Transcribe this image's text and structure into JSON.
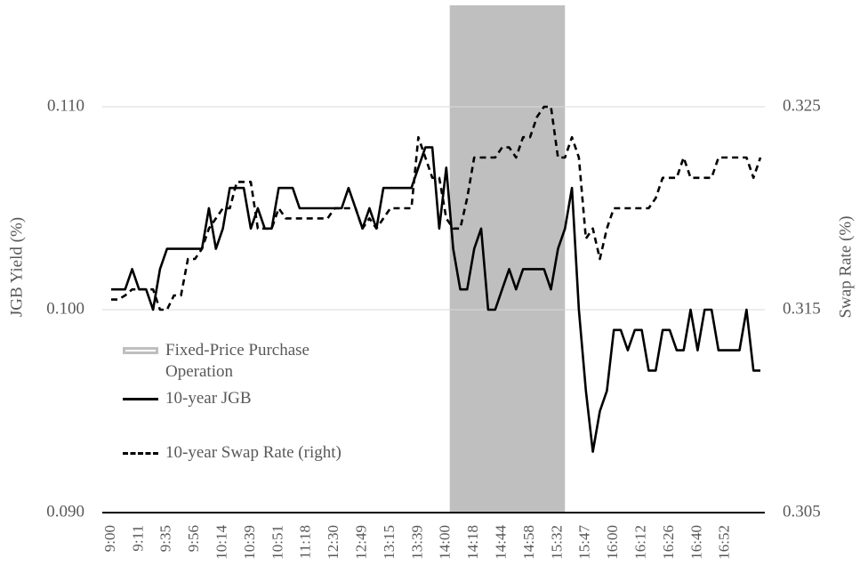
{
  "chart_data": {
    "type": "line",
    "y_label": "JGB Yield (%)",
    "y2_label": "Swap Rate (%)",
    "categories": [
      "9:00",
      null,
      null,
      null,
      "9:11",
      null,
      null,
      null,
      "9:35",
      null,
      null,
      null,
      "9:56",
      null,
      null,
      null,
      "10:14",
      null,
      null,
      null,
      "10:39",
      null,
      null,
      null,
      "10:51",
      null,
      null,
      null,
      "11:18",
      null,
      null,
      null,
      "12:30",
      null,
      null,
      null,
      "12:49",
      null,
      null,
      null,
      "13:15",
      null,
      null,
      null,
      "13:39",
      null,
      null,
      null,
      "14:00",
      null,
      null,
      null,
      "14:18",
      null,
      null,
      null,
      "14:44",
      null,
      null,
      null,
      "14:58",
      null,
      null,
      null,
      "15:32",
      null,
      null,
      null,
      "15:47",
      null,
      null,
      null,
      "16:00",
      null,
      null,
      null,
      "16:12",
      null,
      null,
      null,
      "16:26",
      null,
      null,
      null,
      "16:40",
      null,
      null,
      null,
      "16:52",
      null,
      null,
      null,
      null,
      null
    ],
    "highlight": {
      "name": "Fixed-Price Purchase Operation",
      "start": 48.5,
      "end": 65.0,
      "color": "#bfbfbf"
    },
    "series": [
      {
        "name": "10-year JGB",
        "color": "#000000",
        "style": "solid",
        "values": [
          0.101,
          0.101,
          0.101,
          0.102,
          0.101,
          0.101,
          0.1,
          0.102,
          0.103,
          0.103,
          0.103,
          0.103,
          0.103,
          0.103,
          0.105,
          0.103,
          0.104,
          0.106,
          0.106,
          0.106,
          0.104,
          0.105,
          0.104,
          0.104,
          0.106,
          0.106,
          0.106,
          0.105,
          0.105,
          0.105,
          0.105,
          0.105,
          0.105,
          0.105,
          0.106,
          0.105,
          0.104,
          0.105,
          0.104,
          0.106,
          0.106,
          0.106,
          0.106,
          0.106,
          0.107,
          0.108,
          0.108,
          0.104,
          0.107,
          0.103,
          0.101,
          0.101,
          0.103,
          0.104,
          0.1,
          0.1,
          0.101,
          0.102,
          0.101,
          0.102,
          0.102,
          0.102,
          0.102,
          0.101,
          0.103,
          0.104,
          0.106,
          0.1,
          0.096,
          0.093,
          0.095,
          0.096,
          0.099,
          0.099,
          0.098,
          0.099,
          0.099,
          0.097,
          0.097,
          0.099,
          0.099,
          0.098,
          0.098,
          0.1,
          0.098,
          0.1,
          0.1,
          0.098,
          0.098,
          0.098,
          0.098,
          0.1,
          0.097,
          0.097
        ]
      },
      {
        "name": "10-year Swap Rate (right)",
        "color": "#000000",
        "style": "dashed",
        "axis": "y2",
        "values": [
          0.3155,
          0.3155,
          0.3157,
          0.316,
          0.316,
          0.316,
          0.316,
          0.315,
          0.315,
          0.3157,
          0.3157,
          0.3175,
          0.3175,
          0.318,
          0.319,
          0.3195,
          0.32,
          0.32,
          0.3213,
          0.3213,
          0.3213,
          0.319,
          0.319,
          0.319,
          0.32,
          0.3195,
          0.3195,
          0.3195,
          0.3195,
          0.3195,
          0.3195,
          0.3195,
          0.32,
          0.32,
          0.32,
          0.32,
          0.319,
          0.3195,
          0.319,
          0.3195,
          0.32,
          0.32,
          0.32,
          0.32,
          0.3235,
          0.3225,
          0.3215,
          0.3215,
          0.3195,
          0.319,
          0.319,
          0.3205,
          0.3225,
          0.3225,
          0.3225,
          0.3225,
          0.323,
          0.323,
          0.3225,
          0.3235,
          0.3235,
          0.3245,
          0.325,
          0.325,
          0.3225,
          0.3225,
          0.3235,
          0.3225,
          0.3185,
          0.319,
          0.3175,
          0.319,
          0.32,
          0.32,
          0.32,
          0.32,
          0.32,
          0.32,
          0.3205,
          0.3215,
          0.3215,
          0.3215,
          0.3225,
          0.3215,
          0.3215,
          0.3215,
          0.3215,
          0.3225,
          0.3225,
          0.3225,
          0.3225,
          0.3225,
          0.3215,
          0.3225
        ]
      }
    ],
    "ylim": [
      0.09,
      0.11
    ],
    "yticks": [
      {
        "value": 0.09,
        "label": "0.090"
      },
      {
        "value": 0.1,
        "label": "0.100"
      },
      {
        "value": 0.11,
        "label": "0.110"
      }
    ],
    "y2lim": [
      0.305,
      0.325
    ],
    "y2ticks": [
      {
        "value": 0.305,
        "label": "0.305"
      },
      {
        "value": 0.315,
        "label": "0.315"
      },
      {
        "value": 0.325,
        "label": "0.325"
      }
    ],
    "grid": true
  }
}
